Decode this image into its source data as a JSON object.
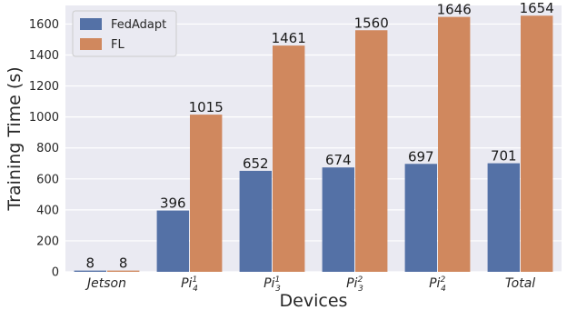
{
  "chart_data": {
    "type": "bar",
    "xlabel": "Devices",
    "ylabel": "Training Time (s)",
    "ylim": [
      0,
      1720
    ],
    "yticks": [
      0,
      200,
      400,
      600,
      800,
      1000,
      1200,
      1400,
      1600
    ],
    "grid": true,
    "legend_position": "top-left",
    "categories": [
      {
        "base": "Jetson",
        "sub": "",
        "sup": ""
      },
      {
        "base": "Pi",
        "sub": "4",
        "sup": "1"
      },
      {
        "base": "Pi",
        "sub": "3",
        "sup": "1"
      },
      {
        "base": "Pi",
        "sub": "3",
        "sup": "2"
      },
      {
        "base": "Pi",
        "sub": "4",
        "sup": "2"
      },
      {
        "base": "Total",
        "sub": "",
        "sup": ""
      }
    ],
    "series": [
      {
        "name": "FedAdapt",
        "color": "#5471a6",
        "values": [
          8,
          396,
          652,
          674,
          697,
          701
        ]
      },
      {
        "name": "FL",
        "color": "#d0885e",
        "values": [
          8,
          1015,
          1461,
          1560,
          1646,
          1654
        ]
      }
    ],
    "background_color": "#eaeaf2"
  }
}
